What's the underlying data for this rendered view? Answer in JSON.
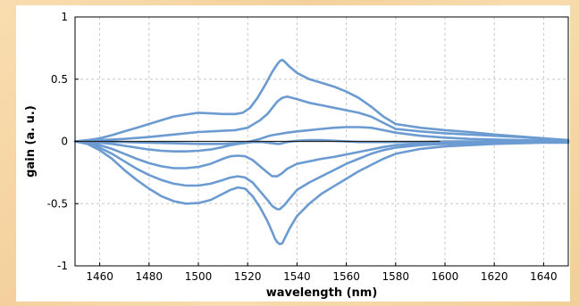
{
  "chart_data": {
    "type": "line",
    "title": "",
    "xlabel": "wavelength (nm)",
    "ylabel": "gain (a. u.)",
    "xlim": [
      1450,
      1650
    ],
    "ylim": [
      -1,
      1
    ],
    "x_ticks": [
      1460,
      1480,
      1500,
      1520,
      1540,
      1560,
      1580,
      1600,
      1620,
      1640
    ],
    "y_ticks": [
      -1,
      -0.5,
      0,
      0.5,
      1
    ],
    "y_tick_labels": [
      "-1",
      "-0.5",
      "0",
      "0.5",
      "1"
    ],
    "grid": true,
    "legend": "none",
    "colors": {
      "series": "#6b9bd1",
      "zero_line": "#222222",
      "grid": "#c8c8c8"
    },
    "baseline": {
      "y": 0,
      "x_range": [
        1450,
        1598
      ]
    },
    "series": [
      {
        "x": [
          1450,
          1455,
          1460,
          1465,
          1470,
          1475,
          1480,
          1485,
          1490,
          1495,
          1500,
          1505,
          1510,
          1515,
          1518,
          1521,
          1524,
          1527,
          1530,
          1532,
          1533,
          1534,
          1535,
          1537,
          1540,
          1545,
          1550,
          1555,
          1560,
          1565,
          1570,
          1575,
          1580,
          1590,
          1600,
          1610,
          1620,
          1630,
          1640,
          1650
        ],
        "y": [
          0,
          0.01,
          0.025,
          0.05,
          0.08,
          0.11,
          0.14,
          0.17,
          0.2,
          0.215,
          0.23,
          0.225,
          0.22,
          0.22,
          0.23,
          0.27,
          0.35,
          0.45,
          0.56,
          0.62,
          0.645,
          0.655,
          0.64,
          0.6,
          0.55,
          0.5,
          0.47,
          0.44,
          0.4,
          0.35,
          0.28,
          0.2,
          0.14,
          0.11,
          0.09,
          0.075,
          0.055,
          0.04,
          0.025,
          0.01
        ]
      },
      {
        "x": [
          1450,
          1460,
          1470,
          1480,
          1490,
          1500,
          1505,
          1510,
          1515,
          1520,
          1525,
          1528,
          1530,
          1532,
          1534,
          1536,
          1540,
          1545,
          1550,
          1555,
          1560,
          1565,
          1570,
          1575,
          1580,
          1590,
          1600,
          1610,
          1620,
          1630,
          1640,
          1650
        ],
        "y": [
          0,
          0.01,
          0.02,
          0.035,
          0.055,
          0.075,
          0.08,
          0.085,
          0.09,
          0.11,
          0.17,
          0.22,
          0.27,
          0.32,
          0.35,
          0.36,
          0.34,
          0.31,
          0.29,
          0.27,
          0.25,
          0.23,
          0.2,
          0.15,
          0.1,
          0.08,
          0.065,
          0.055,
          0.045,
          0.035,
          0.02,
          0.01
        ]
      },
      {
        "x": [
          1450,
          1460,
          1470,
          1480,
          1490,
          1500,
          1510,
          1515,
          1520,
          1525,
          1528,
          1530,
          1533,
          1536,
          1540,
          1545,
          1550,
          1555,
          1560,
          1565,
          1570,
          1575,
          1580,
          1590,
          1600,
          1610,
          1620,
          1630,
          1640,
          1650
        ],
        "y": [
          0,
          0,
          -0.005,
          -0.01,
          -0.015,
          -0.02,
          -0.02,
          -0.015,
          -0.005,
          0.02,
          0.04,
          0.05,
          0.06,
          0.07,
          0.08,
          0.09,
          0.1,
          0.11,
          0.115,
          0.115,
          0.11,
          0.09,
          0.07,
          0.045,
          0.03,
          0.02,
          0.015,
          0.01,
          0.005,
          0
        ]
      },
      {
        "x": [
          1450,
          1455,
          1460,
          1465,
          1470,
          1475,
          1480,
          1485,
          1490,
          1495,
          1500,
          1505,
          1510,
          1513,
          1516,
          1518,
          1520,
          1522,
          1524,
          1526,
          1528,
          1530,
          1532,
          1533,
          1534,
          1535,
          1536,
          1538,
          1540,
          1545,
          1550,
          1555,
          1560,
          1565,
          1570,
          1575,
          1580,
          1590,
          1600,
          1610,
          1620,
          1630,
          1640,
          1650
        ],
        "y": [
          0,
          -0.005,
          -0.01,
          -0.02,
          -0.035,
          -0.05,
          -0.065,
          -0.075,
          -0.08,
          -0.08,
          -0.075,
          -0.065,
          -0.045,
          -0.03,
          -0.02,
          -0.015,
          -0.01,
          -0.005,
          -0.005,
          -0.005,
          -0.01,
          -0.015,
          -0.02,
          -0.02,
          -0.015,
          -0.01,
          -0.005,
          0,
          0.005,
          0.01,
          0.01,
          0.005,
          0,
          -0.005,
          -0.005,
          -0.005,
          -0.005,
          -0.005,
          0,
          0,
          0,
          0,
          0,
          0
        ]
      },
      {
        "x": [
          1450,
          1455,
          1460,
          1465,
          1470,
          1475,
          1480,
          1485,
          1490,
          1495,
          1500,
          1505,
          1510,
          1513,
          1516,
          1519,
          1522,
          1525,
          1528,
          1530,
          1532,
          1534,
          1536,
          1538,
          1540,
          1545,
          1550,
          1555,
          1560,
          1565,
          1570,
          1575,
          1580,
          1590,
          1600,
          1610,
          1620,
          1630,
          1640,
          1650
        ],
        "y": [
          0,
          -0.01,
          -0.03,
          -0.06,
          -0.1,
          -0.14,
          -0.175,
          -0.2,
          -0.215,
          -0.215,
          -0.205,
          -0.18,
          -0.14,
          -0.12,
          -0.115,
          -0.12,
          -0.15,
          -0.2,
          -0.25,
          -0.28,
          -0.28,
          -0.255,
          -0.22,
          -0.2,
          -0.18,
          -0.16,
          -0.14,
          -0.125,
          -0.105,
          -0.085,
          -0.065,
          -0.045,
          -0.03,
          -0.02,
          -0.015,
          -0.01,
          -0.005,
          -0.005,
          0,
          0
        ]
      },
      {
        "x": [
          1450,
          1455,
          1460,
          1465,
          1470,
          1475,
          1480,
          1485,
          1490,
          1495,
          1500,
          1505,
          1510,
          1513,
          1516,
          1519,
          1522,
          1525,
          1528,
          1530,
          1532,
          1533,
          1535,
          1537,
          1540,
          1545,
          1550,
          1555,
          1560,
          1565,
          1570,
          1575,
          1580,
          1590,
          1600,
          1610,
          1620,
          1630,
          1640,
          1650
        ],
        "y": [
          0,
          -0.015,
          -0.05,
          -0.1,
          -0.16,
          -0.22,
          -0.27,
          -0.31,
          -0.34,
          -0.355,
          -0.355,
          -0.34,
          -0.31,
          -0.29,
          -0.28,
          -0.29,
          -0.33,
          -0.4,
          -0.47,
          -0.52,
          -0.545,
          -0.545,
          -0.51,
          -0.46,
          -0.39,
          -0.33,
          -0.28,
          -0.23,
          -0.18,
          -0.14,
          -0.1,
          -0.07,
          -0.05,
          -0.03,
          -0.02,
          -0.015,
          -0.01,
          -0.005,
          0,
          0
        ]
      },
      {
        "x": [
          1450,
          1455,
          1460,
          1465,
          1470,
          1475,
          1480,
          1485,
          1490,
          1495,
          1500,
          1505,
          1510,
          1513,
          1516,
          1519,
          1522,
          1525,
          1528,
          1530,
          1531,
          1532,
          1533,
          1534,
          1535,
          1537,
          1540,
          1545,
          1550,
          1555,
          1560,
          1565,
          1570,
          1575,
          1580,
          1590,
          1600,
          1610,
          1620,
          1630,
          1640,
          1650
        ],
        "y": [
          0,
          -0.02,
          -0.07,
          -0.14,
          -0.23,
          -0.31,
          -0.38,
          -0.44,
          -0.48,
          -0.5,
          -0.495,
          -0.47,
          -0.42,
          -0.39,
          -0.37,
          -0.38,
          -0.44,
          -0.53,
          -0.64,
          -0.73,
          -0.78,
          -0.81,
          -0.825,
          -0.82,
          -0.78,
          -0.7,
          -0.6,
          -0.5,
          -0.42,
          -0.36,
          -0.3,
          -0.24,
          -0.19,
          -0.14,
          -0.1,
          -0.06,
          -0.04,
          -0.03,
          -0.02,
          -0.015,
          -0.01,
          -0.01
        ]
      }
    ]
  }
}
